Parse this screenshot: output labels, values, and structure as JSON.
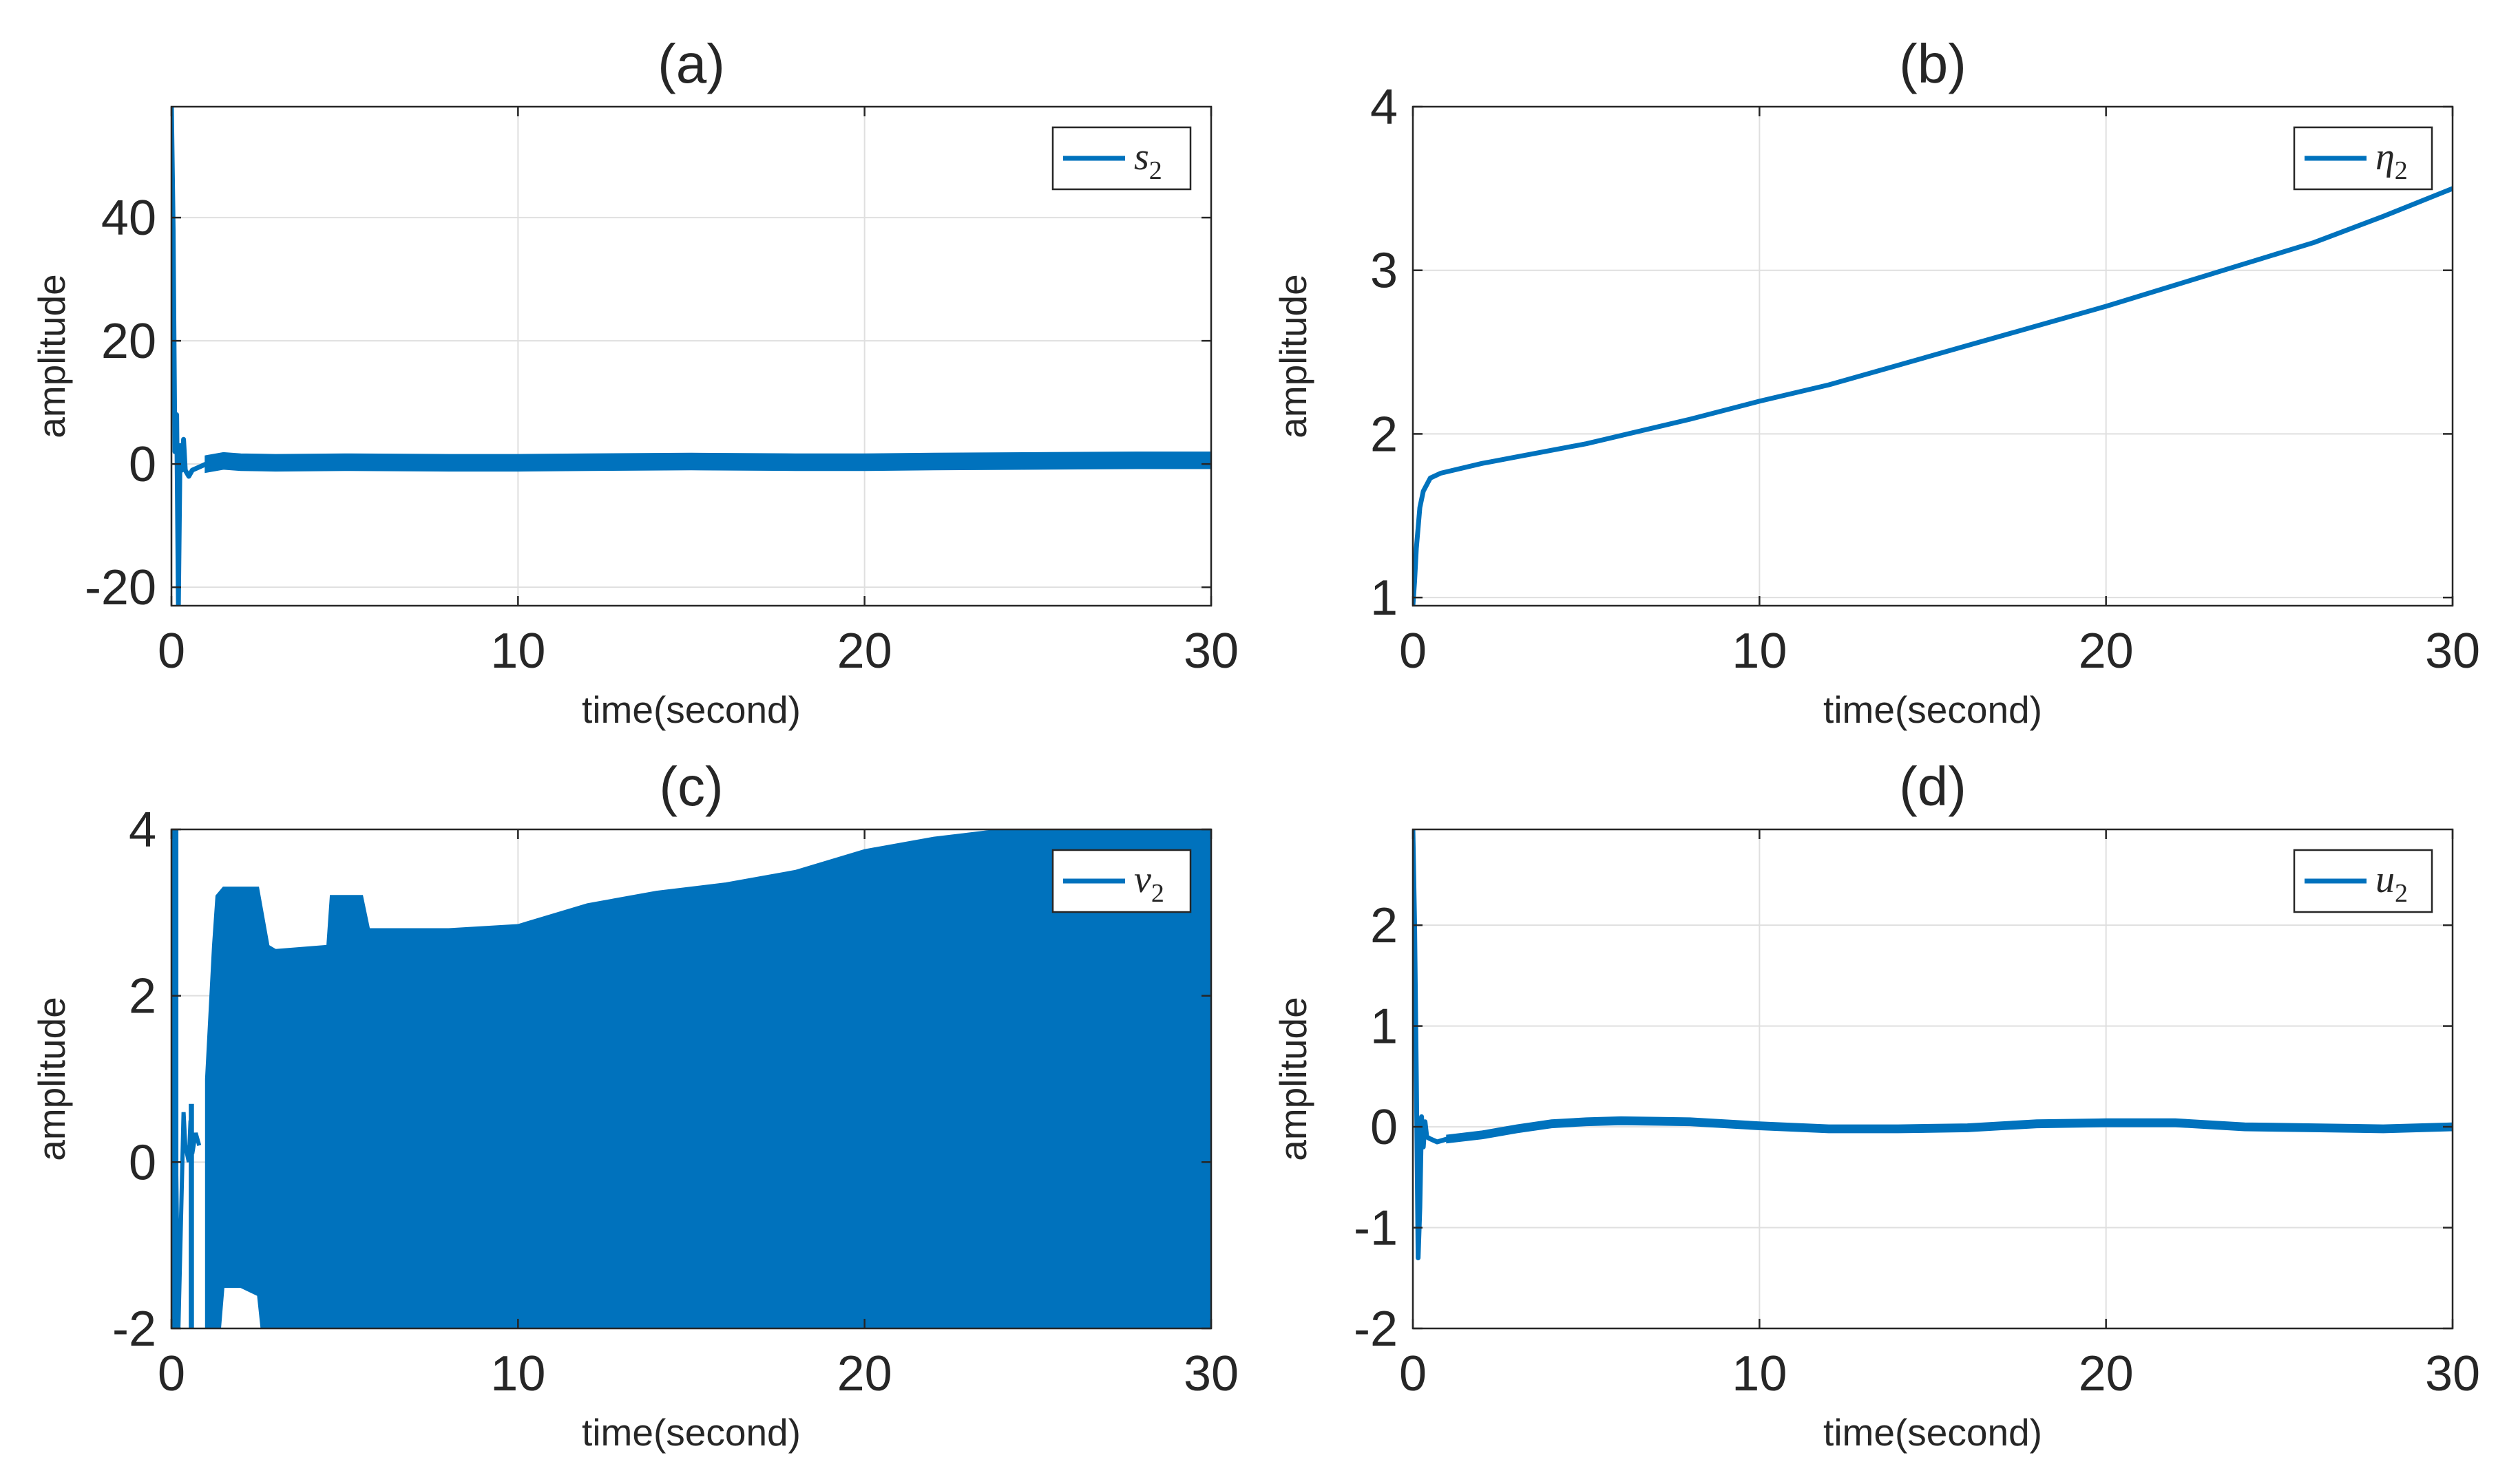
{
  "figure": {
    "line_color": "#0072BD",
    "grid_color": "#dfdfdf",
    "axis_color": "#262626"
  },
  "chart_data": [
    {
      "id": "a",
      "type": "line",
      "title": "(a)",
      "xlabel": "time(second)",
      "ylabel": "amplitude",
      "xlim": [
        0,
        30
      ],
      "ylim": [
        -23,
        58
      ],
      "xticks": [
        0,
        10,
        20,
        30
      ],
      "yticks": [
        -20,
        0,
        20,
        40
      ],
      "grid": true,
      "legend": {
        "symbol": "s",
        "subscript": "2",
        "position": "top-right"
      },
      "series": [
        {
          "name": "s2",
          "x": [
            0,
            0.05,
            0.1,
            0.15,
            0.2,
            0.25,
            0.3,
            0.35,
            0.4,
            0.5,
            0.6,
            0.8,
            1.0,
            1.5,
            2,
            3,
            5,
            8,
            10,
            12,
            15,
            18,
            20,
            22,
            25,
            28,
            30
          ],
          "values": [
            58,
            38,
            2,
            8,
            -23,
            3,
            -1,
            4,
            -1,
            -2,
            -1,
            -0.5,
            0,
            0.5,
            0.3,
            0.2,
            0.3,
            0.2,
            0.2,
            0.3,
            0.4,
            0.3,
            0.3,
            0.4,
            0.5,
            0.6,
            0.6
          ],
          "band_half_width": 1.2
        }
      ]
    },
    {
      "id": "b",
      "type": "line",
      "title": "(b)",
      "xlabel": "time(second)",
      "ylabel": "amplitude",
      "xlim": [
        0,
        30
      ],
      "ylim": [
        0.95,
        4
      ],
      "xticks": [
        0,
        10,
        20,
        30
      ],
      "yticks": [
        1,
        2,
        3,
        4
      ],
      "grid": true,
      "legend": {
        "symbol": "η",
        "subscript": "2",
        "position": "top-right"
      },
      "series": [
        {
          "name": "η2",
          "x": [
            0,
            0.05,
            0.1,
            0.2,
            0.3,
            0.5,
            0.8,
            1.0,
            2,
            3,
            4,
            5,
            6,
            8,
            10,
            12,
            14,
            16,
            18,
            20,
            22,
            24,
            26,
            28,
            30
          ],
          "values": [
            0.95,
            1.1,
            1.3,
            1.55,
            1.65,
            1.73,
            1.76,
            1.77,
            1.82,
            1.86,
            1.9,
            1.94,
            1.99,
            2.09,
            2.2,
            2.3,
            2.42,
            2.54,
            2.66,
            2.78,
            2.91,
            3.04,
            3.17,
            3.33,
            3.5
          ]
        }
      ]
    },
    {
      "id": "c",
      "type": "area",
      "title": "(c)",
      "xlabel": "time(second)",
      "ylabel": "amplitude",
      "xlim": [
        0,
        30
      ],
      "ylim": [
        -2,
        4
      ],
      "xticks": [
        0,
        10,
        20,
        30
      ],
      "yticks": [
        -2,
        0,
        2,
        4
      ],
      "grid": true,
      "legend": {
        "symbol": "v",
        "subscript": "2",
        "position": "top-right"
      },
      "series": [
        {
          "name": "v2 upper envelope",
          "x": [
            1.0,
            1.2,
            1.3,
            1.5,
            2.5,
            2.8,
            3.0,
            4.5,
            4.6,
            5.5,
            5.7,
            6.0,
            8,
            10,
            12,
            14,
            16,
            18,
            20,
            22,
            24,
            26,
            28,
            30
          ],
          "values": [
            1.0,
            2.6,
            3.2,
            3.3,
            3.3,
            2.6,
            2.55,
            2.6,
            3.2,
            3.2,
            2.8,
            2.8,
            2.8,
            2.85,
            3.1,
            3.25,
            3.35,
            3.5,
            3.75,
            3.9,
            4.0,
            4.0,
            4.0,
            4.0
          ]
        },
        {
          "name": "v2 lower envelope",
          "x": [
            1.0,
            1.2,
            1.4,
            1.5,
            2.0,
            2.5,
            2.6,
            3.0,
            30
          ],
          "values": [
            -2,
            -2,
            -2,
            -1.5,
            -1.5,
            -1.6,
            -2,
            -2,
            -2
          ]
        }
      ],
      "initial_transient": {
        "x": [
          0,
          0.2,
          0.35,
          0.4,
          0.5,
          0.55,
          0.6,
          0.7,
          0.8
        ],
        "values": [
          4,
          -2,
          0.6,
          0.2,
          0.0,
          0.5,
          0.1,
          0.35,
          0.2
        ]
      }
    },
    {
      "id": "d",
      "type": "line",
      "title": "(d)",
      "xlabel": "time(second)",
      "ylabel": "amplitude",
      "xlim": [
        0,
        30
      ],
      "ylim": [
        -2,
        2.95
      ],
      "xticks": [
        0,
        10,
        20,
        30
      ],
      "yticks": [
        -2,
        -1,
        0,
        1,
        2
      ],
      "grid": true,
      "legend": {
        "symbol": "u",
        "subscript": "2",
        "position": "top-right"
      },
      "series": [
        {
          "name": "u2",
          "x": [
            0,
            0.05,
            0.1,
            0.15,
            0.2,
            0.25,
            0.3,
            0.35,
            0.4,
            0.5,
            0.7,
            1,
            2,
            3,
            4,
            5,
            6,
            8,
            10,
            12,
            14,
            16,
            18,
            20,
            22,
            24,
            26,
            28,
            30
          ],
          "values": [
            2.95,
            2.0,
            0.5,
            -1.3,
            -0.8,
            0.1,
            -0.2,
            0.05,
            -0.1,
            -0.12,
            -0.15,
            -0.12,
            -0.08,
            -0.02,
            0.03,
            0.05,
            0.06,
            0.05,
            0.01,
            -0.02,
            -0.02,
            -0.01,
            0.03,
            0.04,
            0.04,
            0.0,
            -0.01,
            -0.02,
            0.0
          ],
          "band_half_width": 0.03
        }
      ]
    }
  ]
}
